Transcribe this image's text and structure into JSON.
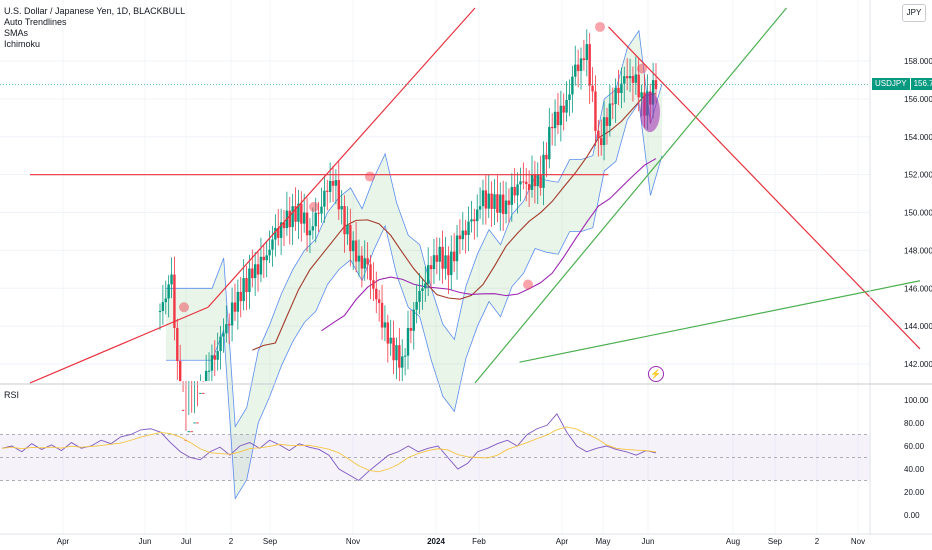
{
  "legend": {
    "symbol": "U.S. Dollar / Japanese Yen, 1D, BLACKBULL",
    "indicators": [
      "Auto Trendlines",
      "SMAs",
      "Ichimoku"
    ]
  },
  "currency_button": "JPY",
  "price_tag": {
    "symbol": "USDJPY",
    "value": "156.763"
  },
  "rsi_title": "RSI",
  "colors": {
    "up": "#089981",
    "down": "#f23645",
    "trend_red": "#e8323f",
    "trend_green": "#4caf50",
    "cloud_line": "#5b8def",
    "sma_fast": "#a33b2b",
    "sma_slow": "#9c27b0",
    "rsi_line": "#7e57c2",
    "rsi_ma": "#f5c542"
  },
  "chart_data": {
    "type": "candlestick",
    "x_axis": {
      "tick_labels": [
        "Apr",
        "Jun",
        "Jul",
        "2",
        "Sep",
        "Nov",
        "2024",
        "Feb",
        "Apr",
        "May",
        "Jun",
        "Aug",
        "Sep",
        "2",
        "Nov"
      ]
    },
    "y_axis": {
      "tick_labels": [
        "158.000",
        "156.000",
        "154.000",
        "152.000",
        "150.000",
        "148.000",
        "146.000",
        "144.000",
        "142.000"
      ],
      "range": [
        141.0,
        160.8
      ]
    },
    "last_price": 156.763,
    "close_series": [
      144.8,
      146.4,
      137.5,
      138.5,
      141.5,
      142.9,
      144.5,
      145.8,
      146.8,
      147.4,
      148.8,
      149.6,
      150.1,
      149.0,
      150.6,
      151.9,
      149.3,
      147.6,
      147.1,
      144.8,
      142.9,
      142.1,
      144.9,
      146.6,
      147.9,
      147.1,
      148.7,
      149.4,
      150.7,
      150.5,
      150.4,
      151.6,
      151.6,
      151.8,
      154.8,
      155.3,
      157.5,
      158.4,
      153.5,
      155.6,
      157.0,
      157.3,
      155.6,
      156.8
    ],
    "trendlines": [
      {
        "color": "red",
        "from": [
          "2023-03",
          141.0
        ],
        "to": [
          "2023-07",
          145.0
        ]
      },
      {
        "color": "red",
        "from": [
          "2023-07",
          145.0
        ],
        "to": [
          "2024-01",
          160.8
        ]
      },
      {
        "color": "red",
        "from": [
          "2023-03",
          152.0
        ],
        "to": [
          "2024-04",
          152.0
        ]
      },
      {
        "color": "red",
        "from": [
          "2024-04",
          159.8
        ],
        "to": [
          "2024-11",
          142.8
        ]
      },
      {
        "color": "green",
        "from": [
          "2024-01",
          141.0
        ],
        "to": [
          "2024-08",
          160.8
        ]
      },
      {
        "color": "green",
        "from": [
          "2024-02",
          142.1
        ],
        "to": [
          "2024-11",
          146.4
        ]
      }
    ],
    "rsi": {
      "tick_labels": [
        "100.00",
        "80.00",
        "60.00",
        "40.00",
        "20.00",
        "0.00"
      ],
      "range": [
        0,
        100
      ],
      "levels": [
        70,
        50,
        30
      ],
      "values": [
        58,
        60,
        55,
        62,
        57,
        61,
        56,
        63,
        58,
        60,
        65,
        62,
        68,
        70,
        74,
        75,
        72,
        63,
        55,
        50,
        48,
        55,
        59,
        52,
        60,
        63,
        58,
        65,
        61,
        56,
        62,
        59,
        57,
        52,
        40,
        35,
        30,
        38,
        45,
        52,
        55,
        60,
        55,
        58,
        60,
        50,
        40,
        45,
        55,
        58,
        62,
        65,
        60,
        70,
        75,
        78,
        88,
        72,
        60,
        55,
        58,
        60,
        57,
        55,
        52,
        56,
        54
      ]
    }
  }
}
